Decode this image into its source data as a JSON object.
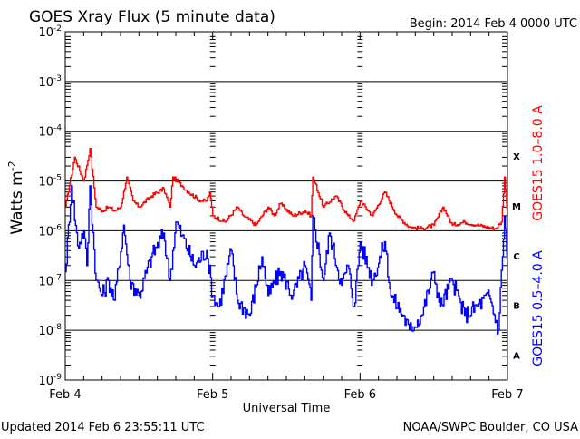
{
  "chart_data": {
    "type": "line",
    "title": "GOES Xray Flux (5 minute data)",
    "begin_label": "Begin:  2014 Feb 4 0000 UTC",
    "xlabel": "Universal Time",
    "ylabel": "Watts m",
    "ylabel_sup": "-2",
    "yscale": "log",
    "ylim": [
      1e-09,
      0.01
    ],
    "xlim_hours": [
      0,
      72
    ],
    "grid": "horizontal at each decade",
    "y_ticks": [
      {
        "base": "10",
        "exp": "-2"
      },
      {
        "base": "10",
        "exp": "-3"
      },
      {
        "base": "10",
        "exp": "-4"
      },
      {
        "base": "10",
        "exp": "-5"
      },
      {
        "base": "10",
        "exp": "-6"
      },
      {
        "base": "10",
        "exp": "-7"
      },
      {
        "base": "10",
        "exp": "-8"
      },
      {
        "base": "10",
        "exp": "-9"
      }
    ],
    "x_ticks": [
      {
        "label": "Feb 4",
        "hour": 0
      },
      {
        "label": "Feb 5",
        "hour": 24
      },
      {
        "label": "Feb 6",
        "hour": 48
      },
      {
        "label": "Feb 7",
        "hour": 72
      }
    ],
    "flare_classes": [
      {
        "label": "X",
        "decade": -4
      },
      {
        "label": "M",
        "decade": -5
      },
      {
        "label": "C",
        "decade": -6
      },
      {
        "label": "B",
        "decade": -7
      },
      {
        "label": "A",
        "decade": -8
      }
    ],
    "series": [
      {
        "name": "GOES15 1.0–8.0 A",
        "color": "#ff0000",
        "hours": [
          0,
          1.5,
          3,
          4,
          5,
          6,
          7,
          8,
          9,
          10,
          11,
          12,
          14,
          16,
          17,
          17.5,
          19,
          20,
          22,
          23,
          23.5,
          24,
          26,
          28,
          29,
          31,
          33,
          34,
          35,
          37,
          39,
          40,
          40.3,
          42,
          44,
          46,
          47,
          48,
          50,
          52,
          54,
          56,
          58,
          60,
          61.5,
          63,
          65,
          67,
          70,
          71,
          71.5,
          72
        ],
        "values": [
          3e-06,
          3e-05,
          1e-05,
          4.5e-05,
          3e-06,
          2.5e-06,
          3e-06,
          2.5e-06,
          3e-06,
          1.2e-05,
          4e-06,
          3e-06,
          5e-06,
          7e-06,
          3e-06,
          1.2e-05,
          8e-06,
          6e-06,
          4e-06,
          4e-06,
          6e-06,
          2e-06,
          1.5e-06,
          3e-06,
          2e-06,
          1.3e-06,
          3e-06,
          2e-06,
          3.5e-06,
          2e-06,
          2.5e-06,
          2e-06,
          1.2e-05,
          3e-06,
          5e-06,
          2e-06,
          1.6e-06,
          4e-06,
          2e-06,
          6e-06,
          2e-06,
          1.2e-06,
          1.1e-06,
          1.3e-06,
          3e-06,
          1.3e-06,
          1.5e-06,
          1.3e-06,
          1.1e-06,
          1.5e-06,
          1.2e-05,
          2e-06
        ]
      },
      {
        "name": "GOES15 0.5–4.0 A",
        "color": "#0000ff",
        "hours": [
          0,
          1,
          2,
          3,
          3.5,
          4,
          5,
          6,
          7,
          8,
          9.5,
          10.5,
          12,
          14,
          16,
          17,
          18,
          19,
          21,
          23,
          24,
          25,
          27,
          28,
          30,
          32,
          33,
          35,
          37,
          39,
          40,
          40.3,
          42,
          43,
          45,
          46,
          47,
          48,
          50,
          52,
          53,
          55,
          56,
          58,
          60,
          61,
          63,
          65,
          67,
          69,
          70.5,
          71.5,
          72
        ],
        "values": [
          1.5e-07,
          8e-06,
          5e-07,
          1e-06,
          2e-07,
          8e-06,
          1e-07,
          5e-08,
          1e-07,
          4e-08,
          1.3e-06,
          1e-07,
          5e-08,
          3e-07,
          9e-07,
          1e-07,
          1.5e-06,
          8e-07,
          2e-07,
          4e-07,
          5e-08,
          3e-08,
          4e-07,
          4e-08,
          2e-08,
          3e-07,
          5e-08,
          1.5e-07,
          5e-08,
          2e-07,
          4e-08,
          2e-06,
          1e-07,
          9e-07,
          8e-08,
          2e-07,
          3e-08,
          6e-07,
          1e-07,
          6e-07,
          5e-08,
          2e-08,
          1e-08,
          2e-08,
          1.5e-07,
          3e-08,
          1e-07,
          2e-08,
          3e-08,
          5e-08,
          1e-08,
          2e-06,
          2e-07
        ]
      }
    ]
  },
  "footer": {
    "updated": "Updated 2014 Feb  6 23:55:11 UTC",
    "source": "NOAA/SWPC Boulder, CO USA"
  }
}
